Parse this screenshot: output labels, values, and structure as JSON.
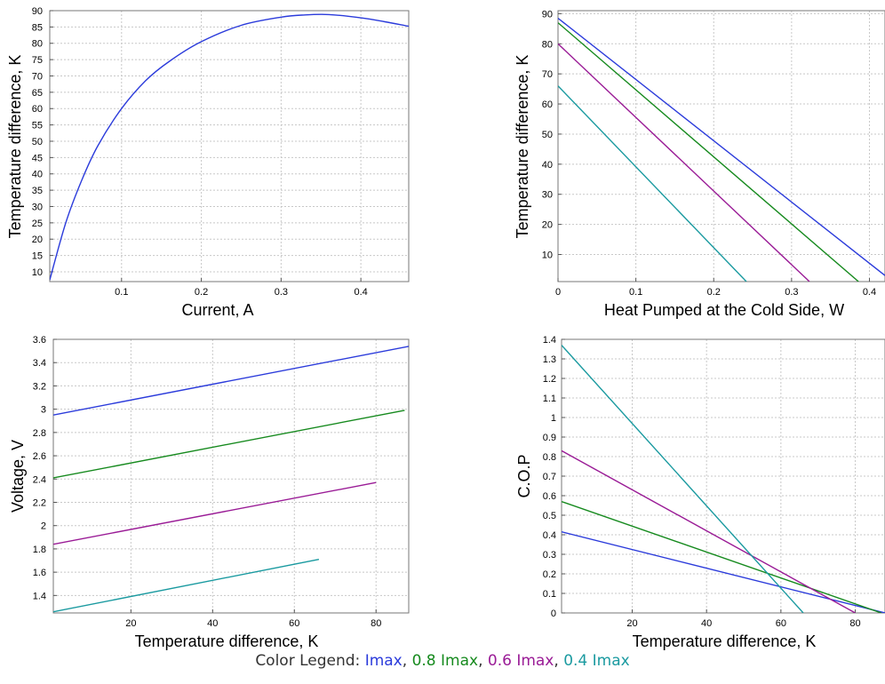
{
  "series_colors": [
    "#2b3bdb",
    "#168a1e",
    "#9a1b96",
    "#1a9aa0"
  ],
  "chart_data": [
    {
      "type": "line",
      "xlabel": "Current, A",
      "ylabel": "Temperature difference, K",
      "xlim": [
        0.01,
        0.46
      ],
      "ylim": [
        7,
        90
      ],
      "xticks": [
        0.1,
        0.2,
        0.3,
        0.4
      ],
      "yticks": [
        10,
        15,
        20,
        25,
        30,
        35,
        40,
        45,
        50,
        55,
        60,
        65,
        70,
        75,
        80,
        85,
        90
      ],
      "grid": true,
      "series": [
        {
          "x": [
            0.01,
            0.03,
            0.05,
            0.07,
            0.1,
            0.13,
            0.16,
            0.2,
            0.25,
            0.3,
            0.33,
            0.36,
            0.4,
            0.43,
            0.46
          ],
          "y": [
            7.5,
            25,
            38,
            48.5,
            60,
            68.5,
            74.5,
            80.5,
            85.5,
            88,
            88.7,
            88.8,
            87.8,
            86.6,
            85.2
          ]
        }
      ]
    },
    {
      "type": "line",
      "xlabel": "Heat Pumped at the Cold Side, W",
      "ylabel": "Temperature difference, K",
      "xlim": [
        0,
        0.42
      ],
      "ylim": [
        1,
        91
      ],
      "xticks": [
        0,
        0.1,
        0.2,
        0.3,
        0.4
      ],
      "yticks": [
        10,
        20,
        30,
        40,
        50,
        60,
        70,
        80,
        90
      ],
      "grid": true,
      "series": [
        {
          "x": [
            0,
            0.42
          ],
          "y": [
            88.5,
            3
          ]
        },
        {
          "x": [
            0,
            0.386
          ],
          "y": [
            87,
            1
          ]
        },
        {
          "x": [
            0,
            0.323
          ],
          "y": [
            80,
            1
          ]
        },
        {
          "x": [
            0,
            0.242
          ],
          "y": [
            66,
            1
          ]
        }
      ]
    },
    {
      "type": "line",
      "xlabel": "Temperature difference, K",
      "ylabel": "Voltage, V",
      "xlim": [
        1,
        88
      ],
      "ylim": [
        1.25,
        3.6
      ],
      "xticks": [
        20,
        40,
        60,
        80
      ],
      "yticks": [
        1.4,
        1.6,
        1.8,
        2,
        2.2,
        2.4,
        2.6,
        2.8,
        3,
        3.2,
        3.4,
        3.6
      ],
      "grid": true,
      "series": [
        {
          "x": [
            1,
            88
          ],
          "y": [
            2.95,
            3.54
          ]
        },
        {
          "x": [
            1,
            87
          ],
          "y": [
            2.41,
            2.99
          ]
        },
        {
          "x": [
            1,
            80
          ],
          "y": [
            1.84,
            2.37
          ]
        },
        {
          "x": [
            1,
            66
          ],
          "y": [
            1.26,
            1.71
          ]
        }
      ]
    },
    {
      "type": "line",
      "xlabel": "Temperature difference, K",
      "ylabel": "C.O.P",
      "xlim": [
        1,
        88
      ],
      "ylim": [
        0,
        1.4
      ],
      "xticks": [
        20,
        40,
        60,
        80
      ],
      "yticks": [
        0,
        0.1,
        0.2,
        0.3,
        0.4,
        0.5,
        0.6,
        0.7,
        0.8,
        0.9,
        1,
        1.1,
        1.2,
        1.3,
        1.4
      ],
      "grid": true,
      "series": [
        {
          "x": [
            1,
            88
          ],
          "y": [
            0.415,
            0.0
          ]
        },
        {
          "x": [
            1,
            87
          ],
          "y": [
            0.57,
            0.0
          ]
        },
        {
          "x": [
            1,
            80
          ],
          "y": [
            0.83,
            0.0
          ]
        },
        {
          "x": [
            1,
            66
          ],
          "y": [
            1.37,
            0.0
          ]
        }
      ]
    }
  ],
  "legend": {
    "prefix": "Color Legend: ",
    "items": [
      {
        "label": "Imax",
        "color": "#2b3bdb"
      },
      {
        "label": "0.8 Imax",
        "color": "#168a1e"
      },
      {
        "label": "0.6 Imax",
        "color": "#9a1b96"
      },
      {
        "label": "0.4 Imax",
        "color": "#1a9aa0"
      }
    ]
  }
}
